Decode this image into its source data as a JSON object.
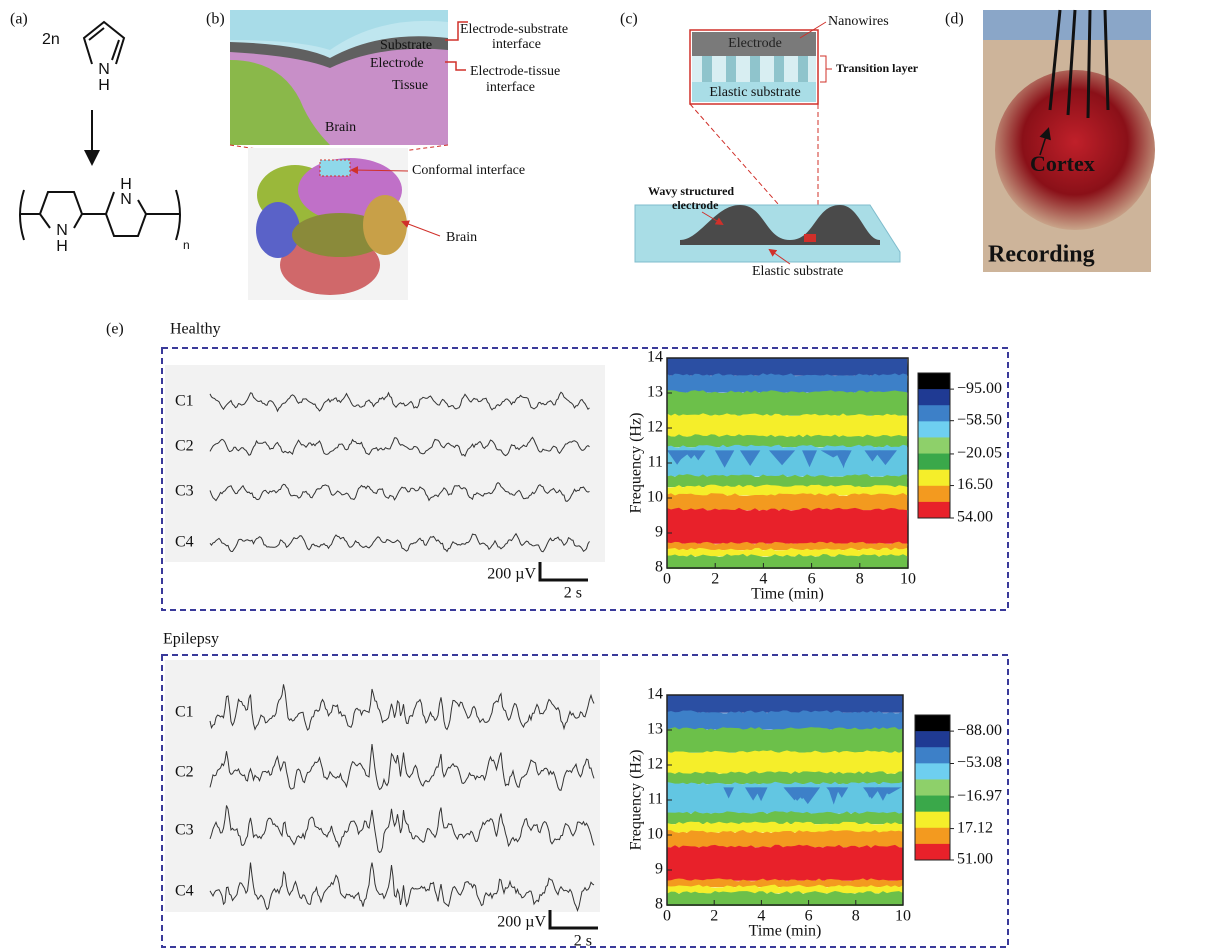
{
  "panel_a": {
    "label": "(a)",
    "coefficient": "2n",
    "monomer_atoms": [
      "N",
      "H"
    ],
    "polymer_atoms": [
      "N",
      "H",
      "H",
      "N"
    ],
    "repeat_subscript": "n"
  },
  "panel_b": {
    "label": "(b)",
    "layers": [
      "Substrate",
      "Electrode",
      "Tissue",
      "Brain"
    ],
    "electrode_substrate": [
      "Electrode-substrate",
      "interface"
    ],
    "electrode_tissue": [
      "Electrode-tissue",
      "interface"
    ],
    "conformal": "Conformal interface",
    "brain": "Brain"
  },
  "panel_c": {
    "label": "(c)",
    "electrode": "Electrode",
    "nanowires": "Nanowires",
    "transition_layer": "Transition layer",
    "inset_substrate": "Elastic substrate",
    "wavy_electrode": [
      "Wavy structured",
      "electrode"
    ],
    "substrate": "Elastic substrate"
  },
  "panel_d": {
    "label": "(d)",
    "cortex": "Cortex",
    "recording": "Recording"
  },
  "panel_e": {
    "label": "(e)",
    "conditions": [
      {
        "title": "Healthy",
        "channels": [
          "C1",
          "C2",
          "C3",
          "C4"
        ],
        "amplitude_scale": "200 µV",
        "time_scale": "2 s",
        "spectrogram": {
          "ylabel": "Frequency (Hz)",
          "xlabel": "Time (min)",
          "xticks": [
            0,
            2,
            4,
            6,
            8,
            10
          ],
          "yticks": [
            8,
            9,
            10,
            11,
            12,
            13,
            14
          ],
          "colorbar_ticks": [
            {
              "value": -95,
              "label": "−95.00"
            },
            {
              "value": -58.5,
              "label": "−58.50"
            },
            {
              "value": -20.05,
              "label": "−20.05"
            },
            {
              "value": 16.5,
              "label": "16.50"
            },
            {
              "value": 54,
              "label": "54.00"
            }
          ]
        }
      },
      {
        "title": "Epilepsy",
        "channels": [
          "C1",
          "C2",
          "C3",
          "C4"
        ],
        "amplitude_scale": "200 µV",
        "time_scale": "2 s",
        "spectrogram": {
          "ylabel": "Frequency (Hz)",
          "xlabel": "Time (min)",
          "xticks": [
            0,
            2,
            4,
            6,
            8,
            10
          ],
          "yticks": [
            8,
            9,
            10,
            11,
            12,
            13,
            14
          ],
          "colorbar_ticks": [
            {
              "value": -88,
              "label": "−88.00"
            },
            {
              "value": -53.08,
              "label": "−53.08"
            },
            {
              "value": -16.97,
              "label": "−16.97"
            },
            {
              "value": 17.12,
              "label": "17.12"
            },
            {
              "value": 51,
              "label": "51.00"
            }
          ]
        }
      }
    ]
  }
}
